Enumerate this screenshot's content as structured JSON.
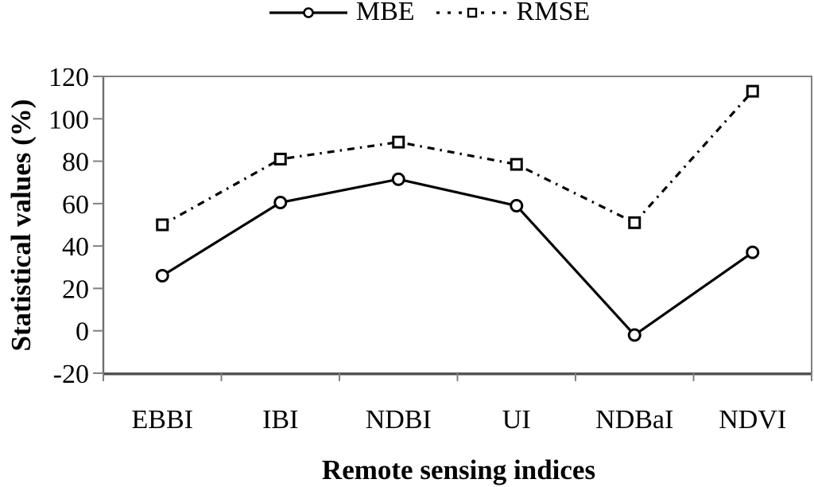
{
  "chart_data": {
    "type": "line",
    "title": "",
    "xlabel": "Remote sensing indices",
    "ylabel": "Statistical values (%)",
    "categories": [
      "EBBI",
      "IBI",
      "NDBI",
      "UI",
      "NDBaI",
      "NDVI"
    ],
    "series": [
      {
        "name": "MBE",
        "values": [
          26,
          60.5,
          71.5,
          59,
          -2,
          37
        ],
        "line": "solid",
        "marker": "circle"
      },
      {
        "name": "RMSE",
        "values": [
          50,
          81,
          89,
          78.5,
          51,
          113
        ],
        "line": "dashed",
        "marker": "square"
      }
    ],
    "ylim": [
      -20,
      120
    ],
    "yticks": [
      120,
      100,
      80,
      60,
      40,
      20,
      0,
      -20
    ],
    "ytick_step": 20,
    "grid": false,
    "legend_position": "top-center",
    "colors": {
      "line": "#000000",
      "frame": "#808080",
      "axis": "#4d4d4d",
      "marker_fill": "#ffffff",
      "background": "#ffffff"
    }
  }
}
